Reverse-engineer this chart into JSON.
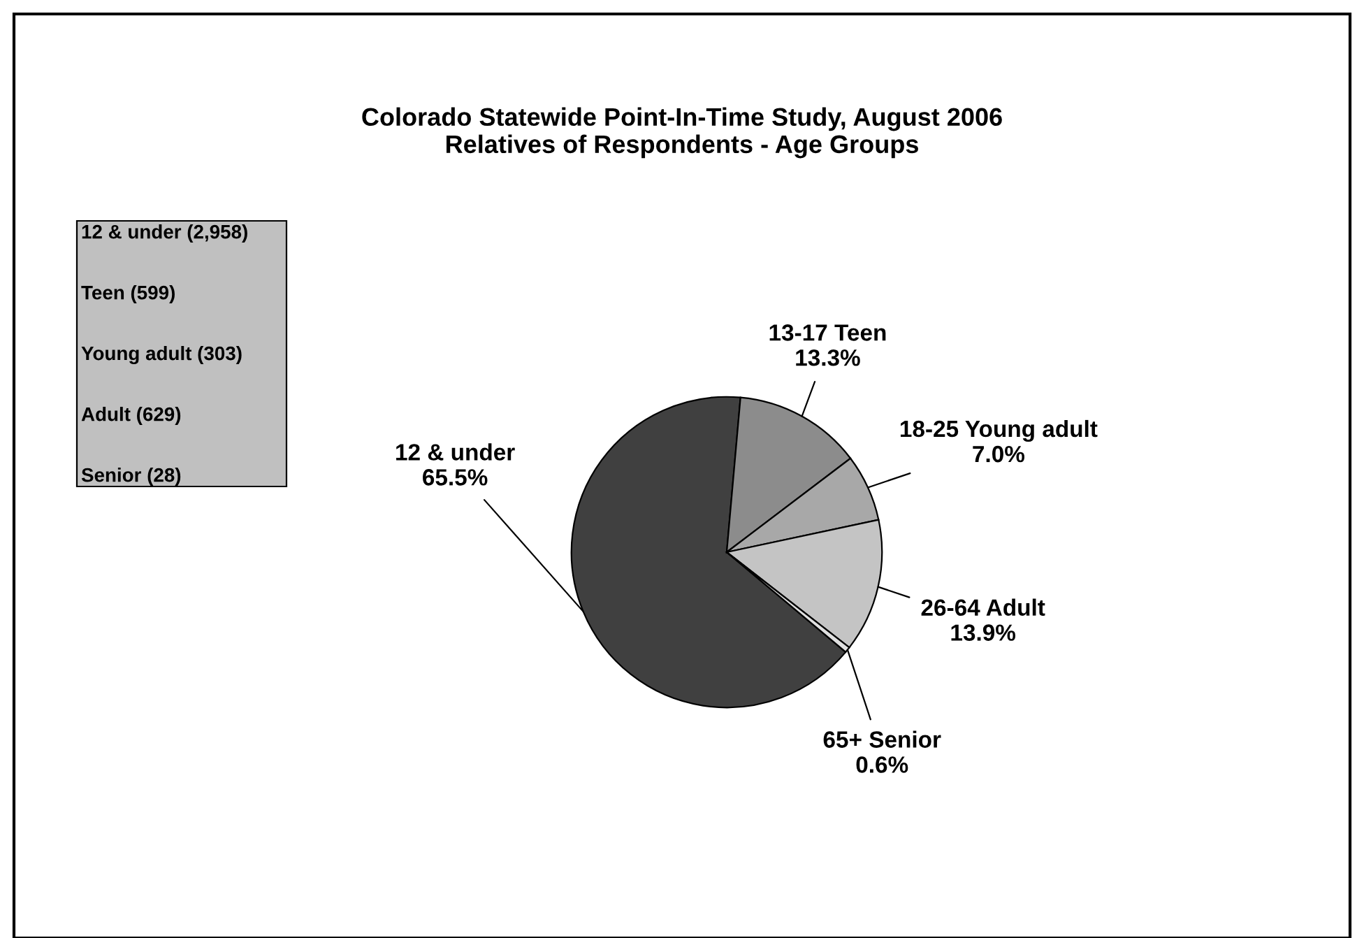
{
  "chart_data": {
    "type": "pie",
    "title": "Colorado Statewide Point-In-Time Study, August 2006\nRelatives of Respondents - Age Groups",
    "categories": [
      "12 & under",
      "13-17 Teen",
      "18-25 Young adult",
      "26-64 Adult",
      "65+ Senior"
    ],
    "values": [
      65.5,
      13.3,
      7.0,
      13.9,
      0.6
    ],
    "value_labels": [
      "65.5%",
      "13.3%",
      "7.0%",
      "13.9%",
      "0.6%"
    ],
    "colors": [
      "#404040",
      "#8c8c8c",
      "#a8a8a8",
      "#c4c4c4",
      "#e0e0e0"
    ],
    "annotations": [
      "12 & under (2,958)",
      "Teen (599)",
      "Young adult (303)",
      "Adult (629)",
      "Senior (28)"
    ]
  }
}
